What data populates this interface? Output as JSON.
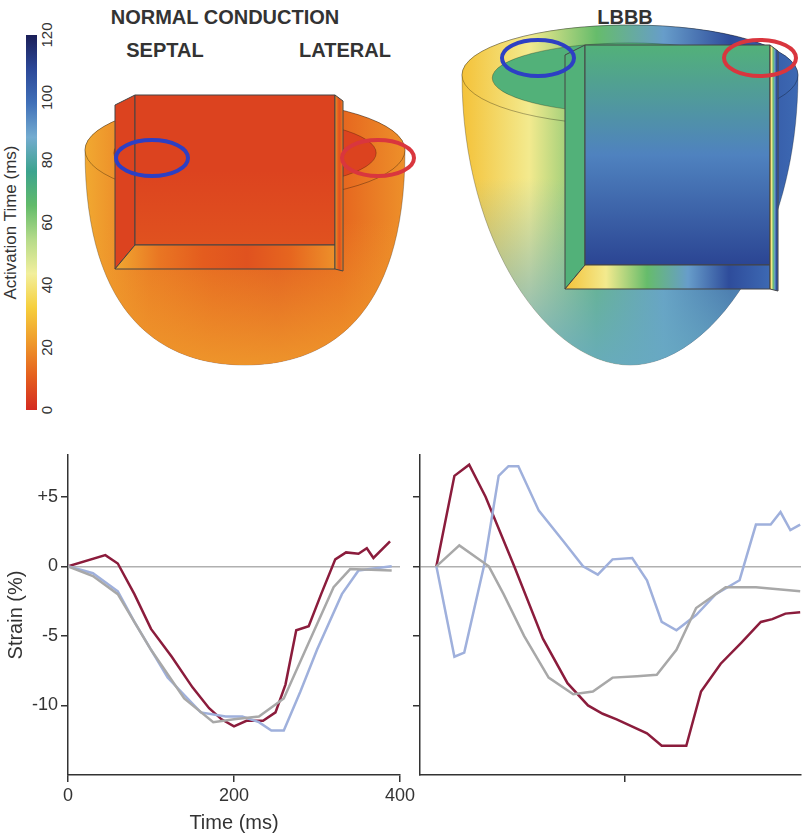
{
  "colorbar": {
    "label": "Activation Time (ms)",
    "range": [
      0,
      120
    ],
    "ticks": [
      0,
      20,
      40,
      60,
      80,
      100,
      120
    ]
  },
  "hearts": [
    {
      "title": "NORMAL CONDUCTION",
      "region_labels": [
        "SEPTAL",
        "LATERAL"
      ],
      "surface_times": [
        25,
        15,
        10,
        8,
        12,
        20
      ],
      "inner_times": [
        5,
        5,
        8
      ],
      "apex_time": 22
    },
    {
      "title": "LBBB",
      "surface_times": [
        30,
        42,
        65,
        90,
        108,
        100
      ],
      "inner_times": [
        70,
        95,
        110
      ],
      "apex_time": 85
    }
  ],
  "chart_data": [
    {
      "type": "line",
      "x_label": "Time (ms)",
      "y_label": "Strain (%)",
      "xlim": [
        0,
        400
      ],
      "xticks": [
        0,
        200,
        400
      ],
      "ylim": [
        -15,
        8
      ],
      "yticks": [
        {
          "value": 5,
          "label": "+5"
        },
        0,
        -5,
        -10
      ],
      "series": [
        {
          "color": "#a8a8a8",
          "x": [
            0,
            30,
            60,
            100,
            140,
            175,
            200,
            230,
            260,
            290,
            320,
            340,
            390
          ],
          "values": [
            0,
            -0.7,
            -2,
            -6,
            -9.5,
            -11.2,
            -11,
            -10.8,
            -9.5,
            -5.5,
            -1.5,
            -0.2,
            -0.3
          ]
        },
        {
          "color": "#9fb0dc",
          "x": [
            0,
            30,
            60,
            80,
            120,
            160,
            190,
            210,
            230,
            245,
            260,
            280,
            300,
            330,
            350,
            390
          ],
          "values": [
            0,
            -0.5,
            -1.8,
            -4,
            -8,
            -10.5,
            -10.8,
            -10.8,
            -11.2,
            -11.8,
            -11.8,
            -9,
            -6,
            -2,
            -0.3,
            0
          ]
        },
        {
          "color": "#8b1c3c",
          "x": [
            0,
            45,
            60,
            80,
            100,
            125,
            150,
            170,
            185,
            200,
            215,
            235,
            250,
            262,
            275,
            290,
            305,
            322,
            335,
            350,
            360,
            368,
            388
          ],
          "values": [
            0,
            0.8,
            0.2,
            -2,
            -4.5,
            -6.5,
            -8.7,
            -10.2,
            -11,
            -11.5,
            -11.1,
            -11.1,
            -10.5,
            -8.5,
            -4.6,
            -4.3,
            -2,
            0.5,
            1,
            0.9,
            1.3,
            0.6,
            1.8
          ]
        }
      ]
    },
    {
      "type": "line",
      "xlim": [
        0,
        465
      ],
      "xticks": [
        250
      ],
      "ylim": [
        -15,
        8
      ],
      "yticks": [
        {
          "value": 5,
          "label": "+5"
        },
        0,
        -5,
        -10
      ],
      "tick_labels": false,
      "series": [
        {
          "color": "#a8a8a8",
          "x": [
            20,
            48,
            84,
            102,
            127,
            157,
            187,
            211,
            235,
            265,
            289,
            313,
            337,
            373,
            410,
            464
          ],
          "values": [
            0,
            1.5,
            0,
            -2,
            -5,
            -8,
            -9.2,
            -9,
            -8,
            -7.9,
            -7.8,
            -6,
            -3,
            -1.5,
            -1.5,
            -1.8
          ]
        },
        {
          "color": "#9fb0dc",
          "x": [
            20,
            42,
            54,
            78,
            96,
            108,
            120,
            145,
            175,
            199,
            217,
            235,
            259,
            277,
            295,
            313,
            337,
            361,
            390,
            410,
            428,
            440,
            452,
            464
          ],
          "values": [
            0,
            -6.5,
            -6.2,
            0,
            6.5,
            7.2,
            7.2,
            4,
            1.8,
            0,
            -0.6,
            0.5,
            0.6,
            -1,
            -4,
            -4.6,
            -3.5,
            -2,
            -1,
            3,
            3,
            3.9,
            2.6,
            3
          ]
        },
        {
          "color": "#8b1c3c",
          "x": [
            20,
            42,
            60,
            80,
            115,
            150,
            180,
            205,
            223,
            240,
            277,
            295,
            325,
            343,
            367,
            392,
            416,
            430,
            446,
            464
          ],
          "values": [
            0,
            6.5,
            7.3,
            5,
            0,
            -5.2,
            -8.4,
            -10,
            -10.6,
            -11,
            -12,
            -12.9,
            -12.9,
            -9,
            -7,
            -5.5,
            -4,
            -3.8,
            -3.4,
            -3.3
          ]
        }
      ]
    }
  ]
}
